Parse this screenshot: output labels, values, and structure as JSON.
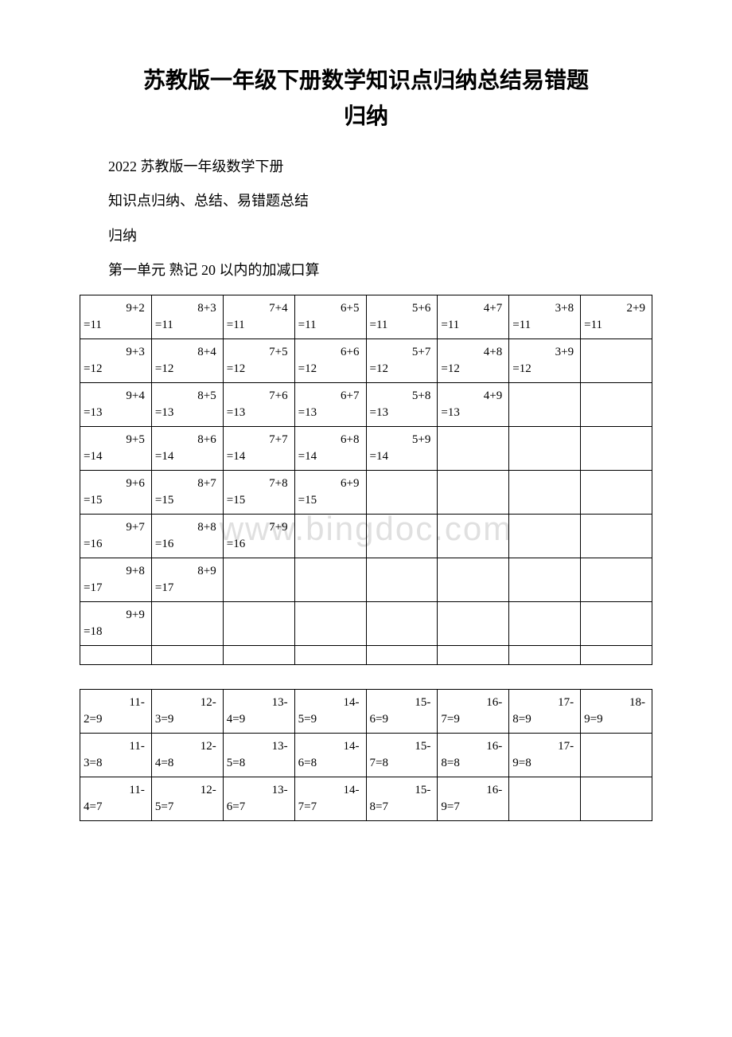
{
  "title_line1": "苏教版一年级下册数学知识点归纳总结易错题",
  "title_line2": "归纳",
  "paragraphs": [
    "2022 苏教版一年级数学下册",
    "知识点归纳、总结、易错题总结",
    "归纳",
    "第一单元 熟记 20 以内的加减口算"
  ],
  "watermark": "www.bingdoc.com",
  "table1": {
    "cols": 8,
    "rows": [
      [
        {
          "l1": "9+2",
          "l2": "=11"
        },
        {
          "l1": "8+3",
          "l2": "=11"
        },
        {
          "l1": "7+4",
          "l2": "=11"
        },
        {
          "l1": "6+5",
          "l2": "=11"
        },
        {
          "l1": "5+6",
          "l2": "=11"
        },
        {
          "l1": "4+7",
          "l2": "=11"
        },
        {
          "l1": "3+8",
          "l2": "=11"
        },
        {
          "l1": "2+9",
          "l2": "=11"
        }
      ],
      [
        {
          "l1": "9+3",
          "l2": "=12"
        },
        {
          "l1": "8+4",
          "l2": "=12"
        },
        {
          "l1": "7+5",
          "l2": "=12"
        },
        {
          "l1": "6+6",
          "l2": "=12"
        },
        {
          "l1": "5+7",
          "l2": "=12"
        },
        {
          "l1": "4+8",
          "l2": "=12"
        },
        {
          "l1": "3+9",
          "l2": "=12"
        },
        {
          "l1": "",
          "l2": ""
        }
      ],
      [
        {
          "l1": "9+4",
          "l2": "=13"
        },
        {
          "l1": "8+5",
          "l2": "=13"
        },
        {
          "l1": "7+6",
          "l2": "=13"
        },
        {
          "l1": "6+7",
          "l2": "=13"
        },
        {
          "l1": "5+8",
          "l2": "=13"
        },
        {
          "l1": "4+9",
          "l2": "=13"
        },
        {
          "l1": "",
          "l2": ""
        },
        {
          "l1": "",
          "l2": ""
        }
      ],
      [
        {
          "l1": "9+5",
          "l2": "=14"
        },
        {
          "l1": "8+6",
          "l2": "=14"
        },
        {
          "l1": "7+7",
          "l2": "=14"
        },
        {
          "l1": "6+8",
          "l2": "=14"
        },
        {
          "l1": "5+9",
          "l2": "=14"
        },
        {
          "l1": "",
          "l2": ""
        },
        {
          "l1": "",
          "l2": ""
        },
        {
          "l1": "",
          "l2": ""
        }
      ],
      [
        {
          "l1": "9+6",
          "l2": "=15"
        },
        {
          "l1": "8+7",
          "l2": "=15"
        },
        {
          "l1": "7+8",
          "l2": "=15"
        },
        {
          "l1": "6+9",
          "l2": "=15"
        },
        {
          "l1": "",
          "l2": ""
        },
        {
          "l1": "",
          "l2": ""
        },
        {
          "l1": "",
          "l2": ""
        },
        {
          "l1": "",
          "l2": ""
        }
      ],
      [
        {
          "l1": "9+7",
          "l2": "=16"
        },
        {
          "l1": "8+8",
          "l2": "=16"
        },
        {
          "l1": "7+9",
          "l2": "=16"
        },
        {
          "l1": "",
          "l2": ""
        },
        {
          "l1": "",
          "l2": ""
        },
        {
          "l1": "",
          "l2": ""
        },
        {
          "l1": "",
          "l2": ""
        },
        {
          "l1": "",
          "l2": ""
        }
      ],
      [
        {
          "l1": "9+8",
          "l2": "=17"
        },
        {
          "l1": "8+9",
          "l2": "=17"
        },
        {
          "l1": "",
          "l2": ""
        },
        {
          "l1": "",
          "l2": ""
        },
        {
          "l1": "",
          "l2": ""
        },
        {
          "l1": "",
          "l2": ""
        },
        {
          "l1": "",
          "l2": ""
        },
        {
          "l1": "",
          "l2": ""
        }
      ],
      [
        {
          "l1": "9+9",
          "l2": "=18"
        },
        {
          "l1": "",
          "l2": ""
        },
        {
          "l1": "",
          "l2": ""
        },
        {
          "l1": "",
          "l2": ""
        },
        {
          "l1": "",
          "l2": ""
        },
        {
          "l1": "",
          "l2": ""
        },
        {
          "l1": "",
          "l2": ""
        },
        {
          "l1": "",
          "l2": ""
        }
      ]
    ],
    "empty_row": true
  },
  "table2": {
    "cols": 8,
    "rows": [
      [
        {
          "l1": "11-",
          "l2": "2=9"
        },
        {
          "l1": "12-",
          "l2": "3=9"
        },
        {
          "l1": "13-",
          "l2": "4=9"
        },
        {
          "l1": "14-",
          "l2": "5=9"
        },
        {
          "l1": "15-",
          "l2": "6=9"
        },
        {
          "l1": "16-",
          "l2": "7=9"
        },
        {
          "l1": "17-",
          "l2": "8=9"
        },
        {
          "l1": "18-",
          "l2": "9=9"
        }
      ],
      [
        {
          "l1": "11-",
          "l2": "3=8"
        },
        {
          "l1": "12-",
          "l2": "4=8"
        },
        {
          "l1": "13-",
          "l2": "5=8"
        },
        {
          "l1": "14-",
          "l2": "6=8"
        },
        {
          "l1": "15-",
          "l2": "7=8"
        },
        {
          "l1": "16-",
          "l2": "8=8"
        },
        {
          "l1": "17-",
          "l2": "9=8"
        },
        {
          "l1": "",
          "l2": ""
        }
      ],
      [
        {
          "l1": "11-",
          "l2": "4=7"
        },
        {
          "l1": "12-",
          "l2": "5=7"
        },
        {
          "l1": "13-",
          "l2": "6=7"
        },
        {
          "l1": "14-",
          "l2": "7=7"
        },
        {
          "l1": "15-",
          "l2": "8=7"
        },
        {
          "l1": "16-",
          "l2": "9=7"
        },
        {
          "l1": "",
          "l2": ""
        },
        {
          "l1": "",
          "l2": ""
        }
      ]
    ]
  }
}
